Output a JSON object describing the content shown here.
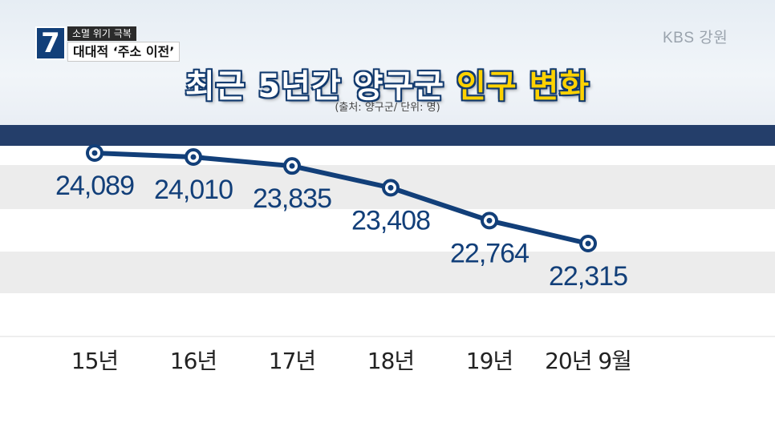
{
  "overlay": {
    "segment_number": "7",
    "segment_title": "소멸 위기 극복",
    "segment_subtitle": "대대적 ‘주소 이전’",
    "logo": "KBS 강원"
  },
  "headline": {
    "title_main": "최근 5년간 양구군 ",
    "title_highlight": "인구 변화",
    "source": "(출처: 양구군/ 단위: 명)"
  },
  "colors": {
    "line": "#123f79",
    "top_band": "#243e6a",
    "stripe": "#ececec",
    "label": "#123f79",
    "highlight": "#ffd200"
  },
  "chart_data": {
    "type": "line",
    "title": "최근 5년간 양구군 인구 변화",
    "subtitle": "(출처: 양구군/ 단위: 명)",
    "xlabel": "",
    "ylabel": "",
    "unit": "명",
    "categories": [
      "15년",
      "16년",
      "17년",
      "18년",
      "19년",
      "20년 9월"
    ],
    "values": [
      24089,
      24010,
      23835,
      23408,
      22764,
      22315
    ],
    "value_labels": [
      "24,089",
      "24,010",
      "23,835",
      "23,408",
      "22,764",
      "22,315"
    ],
    "grid": "horizontal bands",
    "legend": "none"
  }
}
